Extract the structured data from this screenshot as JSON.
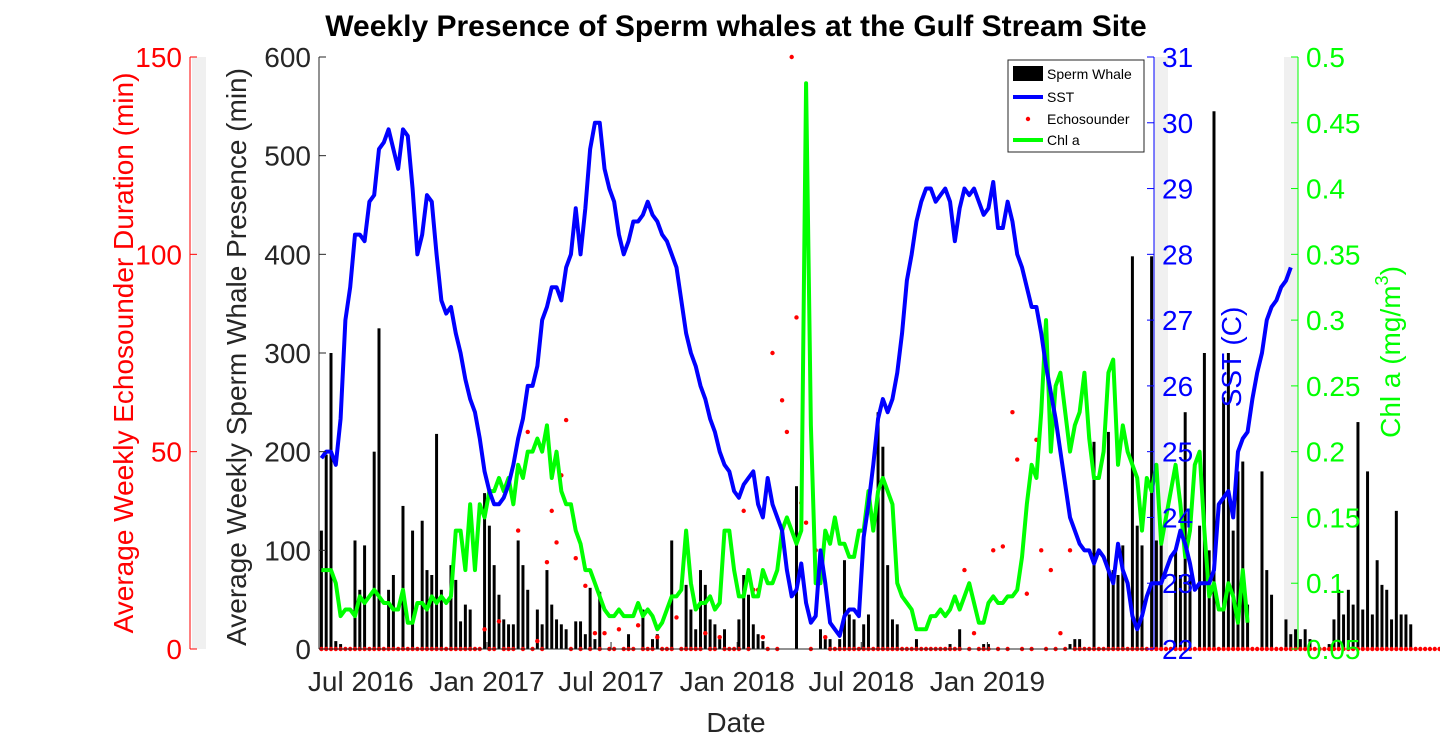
{
  "chart_data": {
    "type": "bar",
    "title": "Weekly Presence of Sperm whales at the Gulf Stream Site",
    "xlabel": "Date",
    "x_tick_labels": [
      "Jul 2016",
      "Jan 2017",
      "Jul 2017",
      "Jan 2018",
      "Jul 2018",
      "Jan 2019"
    ],
    "x_range": [
      "2016-05-01",
      "2019-09-01"
    ],
    "grid": false,
    "legend_placement": "top-right",
    "legend": [
      "Sperm Whale",
      "SST",
      "Echosounder",
      "Chl a"
    ],
    "colors": {
      "sperm_whale": "#000000",
      "sst": "#0000ff",
      "echosounder": "#ff0000",
      "chla": "#00ff00",
      "echo_axis": "#ff0000",
      "axis_text": "#262626",
      "panel_gray": "#f0f0f0"
    },
    "axes": {
      "sperm": {
        "label": "Average Weekly Sperm Whale Presence (min)",
        "ylim": [
          0,
          600
        ],
        "ticks": [
          0,
          100,
          200,
          300,
          400,
          500,
          600
        ]
      },
      "echo": {
        "label": "Average Weekly Echosounder Duration (min)",
        "ylim": [
          0,
          150
        ],
        "ticks": [
          0,
          50,
          100,
          150
        ]
      },
      "sst": {
        "label": "SST (C)",
        "ylim": [
          22,
          31
        ],
        "ticks": [
          22,
          23,
          24,
          25,
          26,
          27,
          28,
          29,
          30,
          31
        ]
      },
      "chla": {
        "label": "Chl a (mg/m",
        "label_sup": "3",
        "label_end": ")",
        "ylim": [
          0.05,
          0.5
        ],
        "ticks": [
          "0.05",
          "0.1",
          "0.15",
          "0.2",
          "0.25",
          "0.3",
          "0.35",
          "0.4",
          "0.45",
          "0.5"
        ]
      }
    },
    "series": [
      {
        "name": "Sperm Whale",
        "type": "bar",
        "x_start": "2016-05-01",
        "step_days": 7,
        "values": [
          120,
          197,
          300,
          8,
          5,
          0,
          0,
          110,
          60,
          105,
          0,
          200,
          325,
          0,
          60,
          75,
          0,
          145,
          0,
          120,
          0,
          130,
          80,
          75,
          218,
          60,
          0,
          85,
          70,
          28,
          45,
          40,
          0,
          0,
          158,
          125,
          85,
          55,
          30,
          25,
          25,
          110,
          85,
          60,
          0,
          40,
          25,
          80,
          45,
          30,
          25,
          20,
          0,
          28,
          28,
          15,
          62,
          10,
          58,
          0,
          0,
          0,
          0,
          0,
          15,
          0,
          0,
          40,
          0,
          10,
          15,
          0,
          0,
          110,
          0,
          0,
          65,
          40,
          20,
          80,
          65,
          30,
          25,
          10,
          20,
          0,
          0,
          30,
          75,
          55,
          25,
          15,
          8,
          0,
          0,
          0,
          0,
          0,
          0,
          165,
          0,
          0,
          0,
          0,
          20,
          10,
          10,
          0,
          10,
          90,
          35,
          30,
          0,
          25,
          35,
          0,
          240,
          205,
          85,
          30,
          25,
          0,
          0,
          0,
          10,
          0,
          0,
          0,
          0,
          0,
          0,
          5,
          0,
          20,
          0,
          0,
          0,
          0,
          5,
          5,
          0,
          0,
          0,
          0,
          0,
          0,
          0,
          0,
          0,
          0,
          0,
          0,
          0,
          0,
          0,
          0,
          5,
          10,
          10,
          0,
          0,
          210,
          0,
          0,
          220,
          80,
          75,
          105,
          0,
          398,
          125,
          105,
          0,
          398,
          110,
          110,
          0,
          0,
          100,
          75,
          240,
          75,
          0,
          125,
          300,
          100,
          545,
          0,
          255,
          300,
          120,
          180,
          190,
          45,
          0,
          0,
          180,
          80,
          55,
          0,
          0,
          30,
          15,
          20,
          10,
          20,
          10,
          0,
          0,
          0,
          5,
          30,
          60,
          35,
          60,
          45,
          230,
          40,
          180,
          35,
          90,
          65,
          60,
          30,
          140,
          35,
          35,
          25,
          0,
          0,
          0,
          0,
          0,
          0,
          0,
          0,
          0,
          45,
          40
        ],
        "values_shown_precision": "estimated"
      },
      {
        "name": "SST",
        "type": "line",
        "x_start": "2016-05-01",
        "step_days": 7,
        "values": [
          24.9,
          25.0,
          25.0,
          24.8,
          25.5,
          27.0,
          27.5,
          28.3,
          28.3,
          28.2,
          28.8,
          28.9,
          29.6,
          29.7,
          29.9,
          29.6,
          29.3,
          29.9,
          29.8,
          29.0,
          28.0,
          28.3,
          28.9,
          28.8,
          28.0,
          27.3,
          27.1,
          27.2,
          26.8,
          26.5,
          26.1,
          25.8,
          25.6,
          25.2,
          24.7,
          24.4,
          24.2,
          24.2,
          24.3,
          24.5,
          24.8,
          25.2,
          25.5,
          26.0,
          26.0,
          26.3,
          27.0,
          27.2,
          27.5,
          27.5,
          27.3,
          27.8,
          28.0,
          28.7,
          28.0,
          28.7,
          29.6,
          30.0,
          30.0,
          29.3,
          29.0,
          28.8,
          28.3,
          28.0,
          28.2,
          28.5,
          28.5,
          28.6,
          28.8,
          28.6,
          28.5,
          28.3,
          28.2,
          28.0,
          27.8,
          27.3,
          26.8,
          26.5,
          26.3,
          26.0,
          25.8,
          25.5,
          25.3,
          25.0,
          24.8,
          24.7,
          24.4,
          24.3,
          24.5,
          24.6,
          24.7,
          24.2,
          24.0,
          24.6,
          24.2,
          24.0,
          23.8,
          23.2,
          22.8,
          22.9,
          23.3,
          22.7,
          22.4,
          22.5,
          23.5,
          23.0,
          22.4,
          22.3,
          22.2,
          22.5,
          22.6,
          22.6,
          22.5,
          23.7,
          24.2,
          24.8,
          25.5,
          25.8,
          25.6,
          25.8,
          26.2,
          26.8,
          27.6,
          28.0,
          28.5,
          28.8,
          29.0,
          29.0,
          28.8,
          28.9,
          29.0,
          28.8,
          28.2,
          28.7,
          29.0,
          28.9,
          29.0,
          28.8,
          28.6,
          28.7,
          29.1,
          28.4,
          28.4,
          28.8,
          28.5,
          28.0,
          27.8,
          27.5,
          27.2,
          27.2,
          26.8,
          26.3,
          25.9,
          25.5,
          25.0,
          24.5,
          24.0,
          23.8,
          23.6,
          23.5,
          23.5,
          23.3,
          23.5,
          23.4,
          23.2,
          23.0,
          23.6,
          23.2,
          23.0,
          22.5,
          22.3,
          22.5,
          22.8,
          23.0,
          23.0,
          23.0,
          23.2,
          23.4,
          23.5,
          23.8,
          23.6,
          23.3,
          22.9,
          23.0,
          23.0,
          23.0,
          23.2,
          24.2,
          24.3,
          24.4,
          24.0,
          25.0,
          25.2,
          25.3,
          25.8,
          26.2,
          26.5,
          27.0,
          27.2,
          27.3,
          27.5,
          27.6,
          27.8
        ],
        "values_shown_precision": "estimated"
      },
      {
        "name": "Echosounder",
        "type": "scatter",
        "points": [
          [
            "2016-05-01",
            0
          ],
          [
            "2016-12-25",
            5
          ],
          [
            "2017-01-15",
            7
          ],
          [
            "2017-02-12",
            30
          ],
          [
            "2017-02-26",
            55
          ],
          [
            "2017-03-12",
            2
          ],
          [
            "2017-03-26",
            22
          ],
          [
            "2017-04-02",
            35
          ],
          [
            "2017-04-09",
            27
          ],
          [
            "2017-04-16",
            44
          ],
          [
            "2017-04-23",
            58
          ],
          [
            "2017-05-07",
            23
          ],
          [
            "2017-05-21",
            16
          ],
          [
            "2017-06-04",
            4
          ],
          [
            "2017-06-18",
            4
          ],
          [
            "2017-07-09",
            5
          ],
          [
            "2017-08-06",
            6
          ],
          [
            "2017-09-03",
            3
          ],
          [
            "2017-10-01",
            8
          ],
          [
            "2017-11-12",
            4
          ],
          [
            "2017-12-03",
            3
          ],
          [
            "2018-01-07",
            35
          ],
          [
            "2018-01-21",
            15
          ],
          [
            "2018-01-28",
            15
          ],
          [
            "2018-02-04",
            3
          ],
          [
            "2018-02-18",
            75
          ],
          [
            "2018-03-04",
            63
          ],
          [
            "2018-03-11",
            55
          ],
          [
            "2018-03-18",
            150
          ],
          [
            "2018-03-25",
            84
          ],
          [
            "2018-04-01",
            37
          ],
          [
            "2018-04-08",
            32
          ],
          [
            "2018-04-22",
            25
          ],
          [
            "2018-04-29",
            22
          ],
          [
            "2018-05-06",
            3
          ],
          [
            "2018-11-25",
            20
          ],
          [
            "2018-12-09",
            4
          ],
          [
            "2019-01-06",
            25
          ],
          [
            "2019-01-20",
            26
          ],
          [
            "2019-02-03",
            60
          ],
          [
            "2019-02-10",
            48
          ],
          [
            "2019-02-24",
            14
          ],
          [
            "2019-03-10",
            53
          ],
          [
            "2019-03-17",
            25
          ],
          [
            "2019-03-31",
            20
          ],
          [
            "2019-04-14",
            4
          ],
          [
            "2019-04-28",
            25
          ]
        ],
        "baseline_zero_weeks": "most weeks show 0",
        "values_shown_precision": "estimated"
      },
      {
        "name": "Chl a",
        "type": "line",
        "x_start": "2016-05-01",
        "step_days": 7,
        "values": [
          0.11,
          0.11,
          0.11,
          0.1,
          0.075,
          0.08,
          0.08,
          0.075,
          0.09,
          0.085,
          0.09,
          0.095,
          0.09,
          0.085,
          0.085,
          0.08,
          0.08,
          0.095,
          0.07,
          0.07,
          0.085,
          0.085,
          0.08,
          0.09,
          0.085,
          0.09,
          0.085,
          0.09,
          0.14,
          0.14,
          0.11,
          0.16,
          0.11,
          0.16,
          0.15,
          0.17,
          0.17,
          0.18,
          0.17,
          0.18,
          0.16,
          0.19,
          0.18,
          0.2,
          0.2,
          0.21,
          0.2,
          0.22,
          0.18,
          0.2,
          0.17,
          0.16,
          0.16,
          0.14,
          0.13,
          0.11,
          0.11,
          0.1,
          0.09,
          0.08,
          0.075,
          0.075,
          0.08,
          0.075,
          0.075,
          0.075,
          0.085,
          0.075,
          0.08,
          0.075,
          0.065,
          0.07,
          0.08,
          0.09,
          0.09,
          0.095,
          0.14,
          0.1,
          0.08,
          0.085,
          0.085,
          0.09,
          0.08,
          0.085,
          0.14,
          0.14,
          0.11,
          0.09,
          0.09,
          0.11,
          0.09,
          0.09,
          0.11,
          0.1,
          0.1,
          0.11,
          0.14,
          0.15,
          0.14,
          0.13,
          0.14,
          0.48,
          0.22,
          0.1,
          0.1,
          0.14,
          0.13,
          0.15,
          0.13,
          0.13,
          0.12,
          0.12,
          0.14,
          0.14,
          0.17,
          0.14,
          0.17,
          0.18,
          0.17,
          0.16,
          0.1,
          0.09,
          0.085,
          0.08,
          0.065,
          0.065,
          0.065,
          0.075,
          0.075,
          0.08,
          0.075,
          0.08,
          0.09,
          0.08,
          0.09,
          0.1,
          0.085,
          0.07,
          0.07,
          0.085,
          0.09,
          0.085,
          0.085,
          0.09,
          0.09,
          0.095,
          0.12,
          0.16,
          0.19,
          0.18,
          0.23,
          0.3,
          0.2,
          0.25,
          0.26,
          0.23,
          0.2,
          0.22,
          0.23,
          0.26,
          0.21,
          0.18,
          0.18,
          0.2,
          0.26,
          0.27,
          0.19,
          0.22,
          0.2,
          0.19,
          0.18,
          0.14,
          0.18,
          0.17,
          0.19,
          0.13,
          0.15,
          0.17,
          0.19,
          0.16,
          0.12,
          0.14,
          0.19,
          0.2,
          0.14,
          0.09,
          0.1,
          0.08,
          0.08,
          0.1,
          0.09,
          0.07,
          0.11,
          0.07
        ],
        "values_shown_precision": "estimated"
      }
    ]
  }
}
